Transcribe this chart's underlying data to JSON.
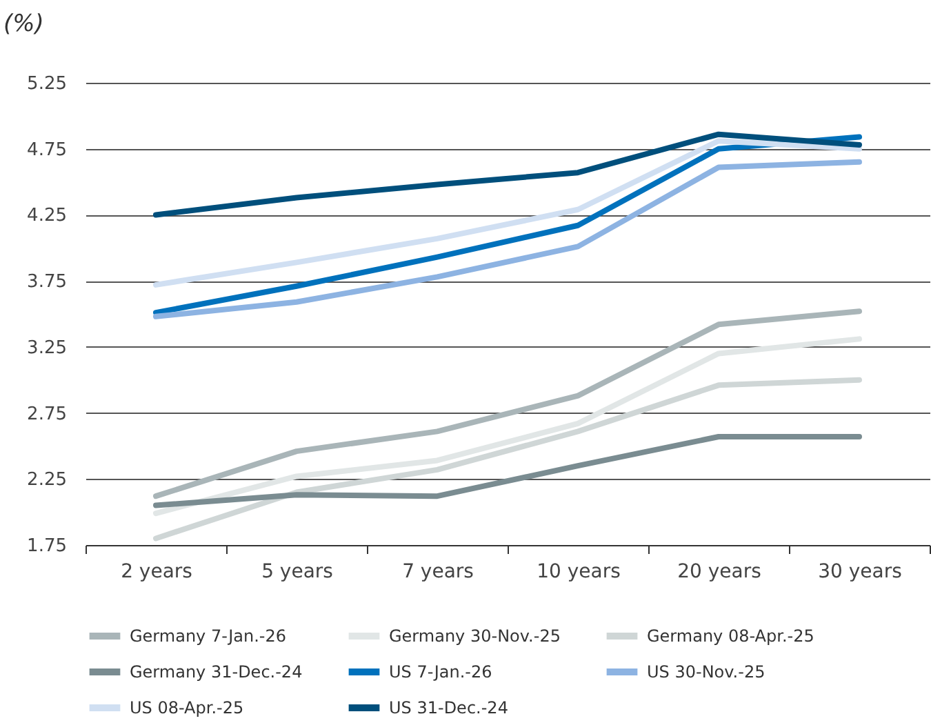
{
  "chart_data": {
    "type": "line",
    "ylabel": "(%)",
    "categories": [
      "2 years",
      "5 years",
      "7 years",
      "10 years",
      "20 years",
      "30 years"
    ],
    "ylim": [
      1.75,
      5.25
    ],
    "yticks": [
      {
        "value": 1.75,
        "label": "1.75"
      },
      {
        "value": 2.25,
        "label": "2.25"
      },
      2.75,
      3.25,
      3.75,
      4.25,
      4.75,
      5.25
    ],
    "grid": "y",
    "legend": "bottom",
    "line_style": "solid",
    "marker": "none",
    "series": [
      {
        "name": "Germany 7-Jan.-26",
        "color": "#a9b5b8",
        "values": [
          2.12,
          2.46,
          2.61,
          2.88,
          3.42,
          3.52
        ]
      },
      {
        "name": "Germany 30-Nov.-25",
        "color": "#e1e6e6",
        "values": [
          1.99,
          2.27,
          2.39,
          2.67,
          3.2,
          3.31
        ]
      },
      {
        "name": "Germany 08-Apr.-25",
        "color": "#cfd6d6",
        "values": [
          1.8,
          2.15,
          2.32,
          2.61,
          2.96,
          3.0
        ]
      },
      {
        "name": "Germany 31-Dec.-24",
        "color": "#7a8c91",
        "values": [
          2.05,
          2.13,
          2.12,
          2.35,
          2.57,
          2.57
        ]
      },
      {
        "name": "US 7-Jan.-26",
        "color": "#0071bc",
        "values": [
          3.51,
          3.71,
          3.93,
          4.17,
          4.75,
          4.84
        ]
      },
      {
        "name": "US 30-Nov.-25",
        "color": "#8db3e2",
        "values": [
          3.48,
          3.59,
          3.78,
          4.01,
          4.61,
          4.65
        ]
      },
      {
        "name": "US 08-Apr.-25",
        "color": "#d0dff2",
        "values": [
          3.72,
          3.89,
          4.07,
          4.29,
          4.81,
          4.75
        ]
      },
      {
        "name": "US 31-Dec.-24",
        "color": "#004f7c",
        "values": [
          4.25,
          4.38,
          4.48,
          4.57,
          4.86,
          4.78
        ]
      }
    ]
  }
}
